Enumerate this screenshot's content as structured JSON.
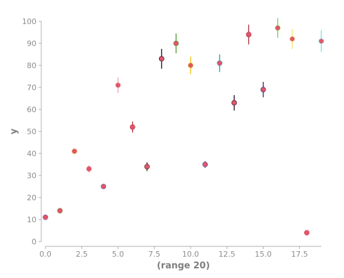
{
  "chart_data": {
    "type": "scatter",
    "title": "",
    "xlabel": "(range 20)",
    "ylabel": "y",
    "xlim": [
      0,
      19
    ],
    "ylim": [
      0,
      100
    ],
    "grid": false,
    "legend": "none",
    "x_ticks": [
      "0.0",
      "2.5",
      "5.0",
      "7.5",
      "10.0",
      "12.5",
      "15.0",
      "17.5"
    ],
    "x_tick_values": [
      0,
      2.5,
      5,
      7.5,
      10,
      12.5,
      15,
      17.5
    ],
    "y_ticks": [
      "0",
      "10",
      "20",
      "30",
      "40",
      "50",
      "60",
      "70",
      "80",
      "90",
      "100"
    ],
    "y_tick_values": [
      0,
      10,
      20,
      30,
      40,
      50,
      60,
      70,
      80,
      90,
      100
    ],
    "points": [
      {
        "x": 0,
        "y": 11,
        "err": 0.5,
        "err_color": "#6f57a8",
        "color": "#e0566a"
      },
      {
        "x": 1,
        "y": 14,
        "err": 0.5,
        "err_color": "#8a7d3a",
        "color": "#e0566a"
      },
      {
        "x": 2,
        "y": 41,
        "err": 0.7,
        "err_color": "#e8a23a",
        "color": "#e0566a"
      },
      {
        "x": 3,
        "y": 33,
        "err": 1.5,
        "err_color": "#f07a8a",
        "color": "#e0566a"
      },
      {
        "x": 4,
        "y": 25,
        "err": 0.5,
        "err_color": "#4a6fa8",
        "color": "#e0566a"
      },
      {
        "x": 5,
        "y": 71,
        "err": 3.5,
        "err_color": "#f4a0aa",
        "color": "#e0566a"
      },
      {
        "x": 6,
        "y": 52,
        "err": 2.5,
        "err_color": "#b03040",
        "color": "#e0566a"
      },
      {
        "x": 7,
        "y": 34,
        "err": 2.0,
        "err_color": "#4a1a1a",
        "color": "#e0566a"
      },
      {
        "x": 8,
        "y": 83,
        "err": 4.5,
        "err_color": "#1a0a2a",
        "color": "#e0566a"
      },
      {
        "x": 9,
        "y": 90,
        "err": 4.5,
        "err_color": "#4a9a2a",
        "color": "#e0566a"
      },
      {
        "x": 10,
        "y": 80,
        "err": 4.0,
        "err_color": "#f2c200",
        "color": "#e0566a"
      },
      {
        "x": 11,
        "y": 35,
        "err": 1.5,
        "err_color": "#3a4aa8",
        "color": "#e0566a"
      },
      {
        "x": 12,
        "y": 81,
        "err": 4.0,
        "err_color": "#2a9aa8",
        "color": "#e0566a"
      },
      {
        "x": 13,
        "y": 63,
        "err": 3.5,
        "err_color": "#2a0a1a",
        "color": "#e0566a"
      },
      {
        "x": 14,
        "y": 94,
        "err": 4.5,
        "err_color": "#a82a3a",
        "color": "#e0566a"
      },
      {
        "x": 15,
        "y": 69,
        "err": 3.5,
        "err_color": "#2a2a7a",
        "color": "#e0566a"
      },
      {
        "x": 16,
        "y": 97,
        "err": 4.5,
        "err_color": "#7ad04a",
        "color": "#e0566a"
      },
      {
        "x": 17,
        "y": 92,
        "err": 4.5,
        "err_color": "#f2e070",
        "color": "#e0566a"
      },
      {
        "x": 18,
        "y": 4,
        "err": 0.5,
        "err_color": "#e0566a",
        "color": "#e0566a"
      },
      {
        "x": 19,
        "y": 91,
        "err": 5.0,
        "err_color": "#7ae0e0",
        "color": "#e0566a"
      }
    ],
    "colors": {
      "axis": "#b0b0b0",
      "tick_text": "#8c8c8c",
      "label_text": "#7f7f7f"
    }
  }
}
